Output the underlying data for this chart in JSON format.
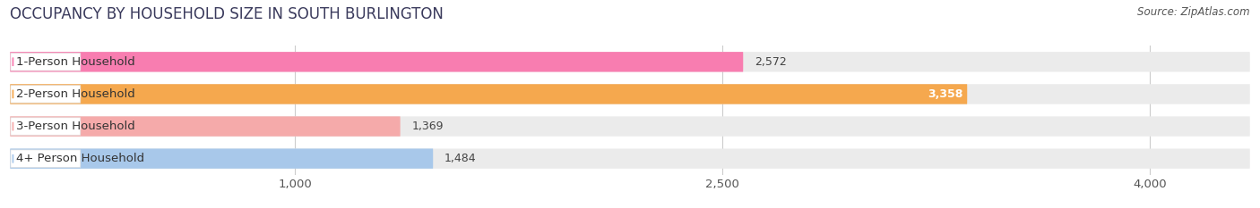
{
  "title": "OCCUPANCY BY HOUSEHOLD SIZE IN SOUTH BURLINGTON",
  "source": "Source: ZipAtlas.com",
  "categories": [
    "1-Person Household",
    "2-Person Household",
    "3-Person Household",
    "4+ Person Household"
  ],
  "values": [
    2572,
    3358,
    1369,
    1484
  ],
  "bar_colors": [
    "#F87DB0",
    "#F5A84E",
    "#F5AAAA",
    "#A8C8EA"
  ],
  "dot_colors": [
    "#F87DB0",
    "#F5A84E",
    "#F5AAAA",
    "#A8C8EA"
  ],
  "background_color": "#ffffff",
  "bar_bg_color": "#ebebeb",
  "xlim_min": 0,
  "xlim_max": 4350,
  "data_max": 4000,
  "xticks": [
    1000,
    2500,
    4000
  ],
  "title_fontsize": 12,
  "label_fontsize": 9.5,
  "value_fontsize": 9,
  "source_fontsize": 8.5
}
